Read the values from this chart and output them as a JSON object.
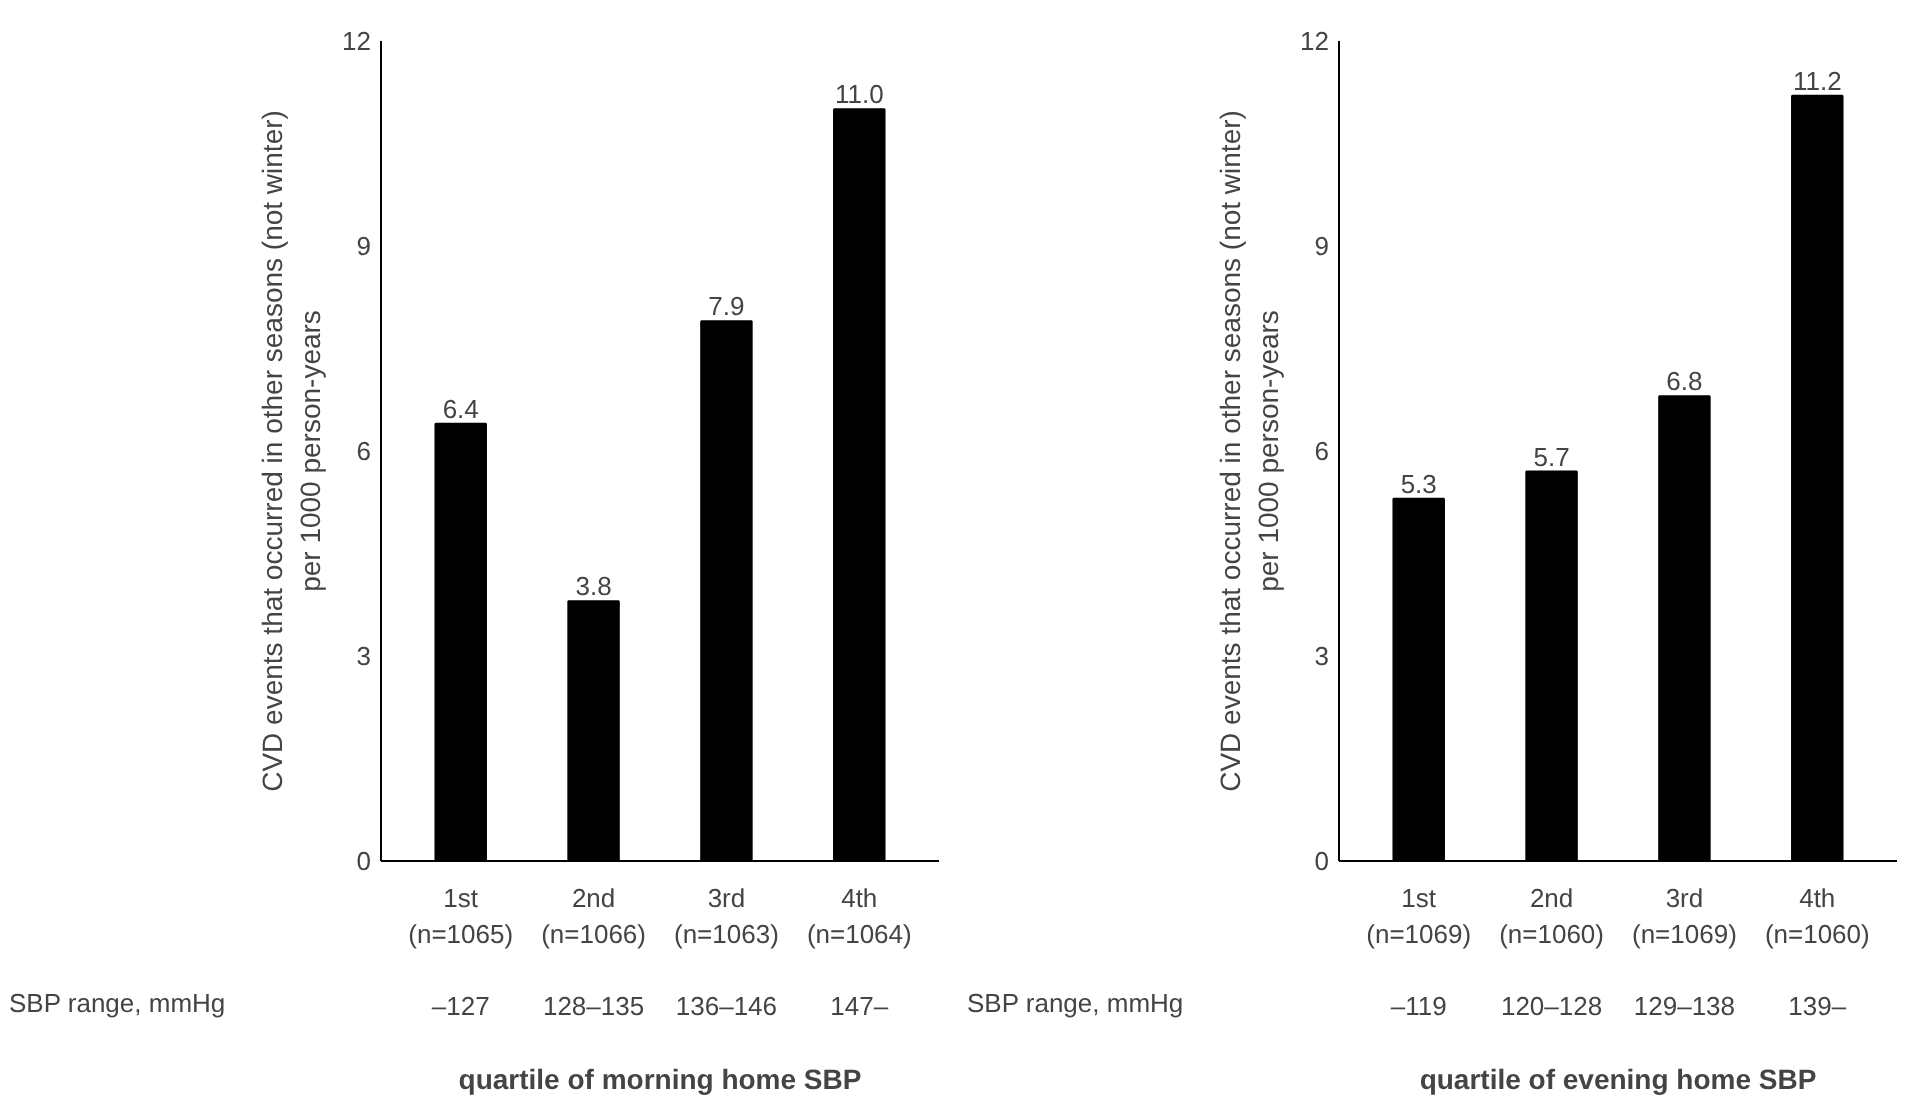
{
  "chart_data": [
    {
      "type": "bar",
      "ylabel": "CVD events that occurred in other seasons (not winter)\nper 1000 person-years",
      "xlabel": "quartile of morning home SBP",
      "categories": [
        "1st\n(n=1065)\n\n–127",
        "2nd\n(n=1066)\n\n128–135",
        "3rd\n(n=1063)\n\n136–146",
        "4th\n(n=1064)\n\n147–"
      ],
      "values": [
        6.4,
        3.8,
        7.9,
        11.0
      ],
      "value_labels": [
        "6.4",
        "3.8",
        "7.9",
        "11.0"
      ],
      "color": "#000000",
      "ylim": [
        0,
        12
      ],
      "yticks": [
        0,
        3,
        6,
        9,
        12
      ],
      "grid": false,
      "annotations": [
        "SBP range, mmHg"
      ]
    },
    {
      "type": "bar",
      "ylabel": "CVD events that occurred in other seasons (not winter)\nper 1000 person-years",
      "xlabel": "quartile of evening home SBP",
      "categories": [
        "1st\n(n=1069)\n\n–119",
        "2nd\n(n=1060)\n\n120–128",
        "3rd\n(n=1069)\n\n129–138",
        "4th\n(n=1060)\n\n139–"
      ],
      "values": [
        5.3,
        5.7,
        6.8,
        11.2
      ],
      "value_labels": [
        "5.3",
        "5.7",
        "6.8",
        "11.2"
      ],
      "color": "#000000",
      "ylim": [
        0,
        12
      ],
      "yticks": [
        0,
        3,
        6,
        9,
        12
      ],
      "grid": false,
      "annotations": [
        "SBP range, mmHg"
      ]
    }
  ]
}
